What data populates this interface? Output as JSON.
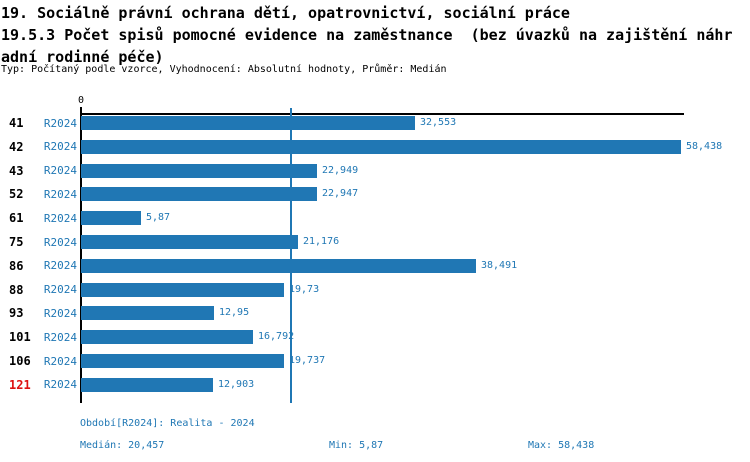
{
  "title": {
    "line1": "19. Sociálně právní ochrana dětí, opatrovnictví, sociální práce",
    "line2": "19.5.3 Počet spisů pomocné evidence na zaměstnance  (bez úvazků na zajištění náhr",
    "line3": "adní rodinné péče)",
    "meta": "Typ: Počítaný podle vzorce, Vyhodnocení: Absolutní hodnoty, Průměr: Medián"
  },
  "chart_data": {
    "type": "bar",
    "orientation": "horizontal",
    "title": "19.5.3 Počet spisů pomocné evidence na zaměstnance (bez úvazků na zajištění náhradní rodinné péče)",
    "xlabel": "",
    "ylabel": "",
    "xlim": [
      0,
      58.438
    ],
    "x_tick_labels": [
      "0"
    ],
    "grid": false,
    "legend_position": "none",
    "series_label": "R2024",
    "categories": [
      "41",
      "42",
      "43",
      "52",
      "61",
      "75",
      "86",
      "88",
      "93",
      "101",
      "106",
      "121"
    ],
    "rows": [
      {
        "category": "41",
        "series": "R2024",
        "value": 32.553,
        "value_label": "32,553",
        "highlight": false
      },
      {
        "category": "42",
        "series": "R2024",
        "value": 58.438,
        "value_label": "58,438",
        "highlight": false
      },
      {
        "category": "43",
        "series": "R2024",
        "value": 22.949,
        "value_label": "22,949",
        "highlight": false
      },
      {
        "category": "52",
        "series": "R2024",
        "value": 22.947,
        "value_label": "22,947",
        "highlight": false
      },
      {
        "category": "61",
        "series": "R2024",
        "value": 5.87,
        "value_label": "5,87",
        "highlight": false
      },
      {
        "category": "75",
        "series": "R2024",
        "value": 21.176,
        "value_label": "21,176",
        "highlight": false
      },
      {
        "category": "86",
        "series": "R2024",
        "value": 38.491,
        "value_label": "38,491",
        "highlight": false
      },
      {
        "category": "88",
        "series": "R2024",
        "value": 19.73,
        "value_label": "19,73",
        "highlight": false
      },
      {
        "category": "93",
        "series": "R2024",
        "value": 12.95,
        "value_label": "12,95",
        "highlight": false
      },
      {
        "category": "101",
        "series": "R2024",
        "value": 16.792,
        "value_label": "16,792",
        "highlight": false
      },
      {
        "category": "106",
        "series": "R2024",
        "value": 19.737,
        "value_label": "19,737",
        "highlight": false
      },
      {
        "category": "121",
        "series": "R2024",
        "value": 12.903,
        "value_label": "12,903",
        "highlight": true
      }
    ],
    "median_value": 20.457,
    "annotations": {
      "median_line": "vertical line at median 20,457"
    }
  },
  "footer": {
    "period": "Období[R2024]: Realita - 2024",
    "median": "Medián: 20,457",
    "min": "Min: 5,87",
    "max": "Max: 58,438"
  },
  "colors": {
    "bar": "#2077b4",
    "text_blue": "#1f77b4",
    "highlight_red": "#dd1111",
    "axis": "#000000",
    "background": "#ffffff"
  }
}
